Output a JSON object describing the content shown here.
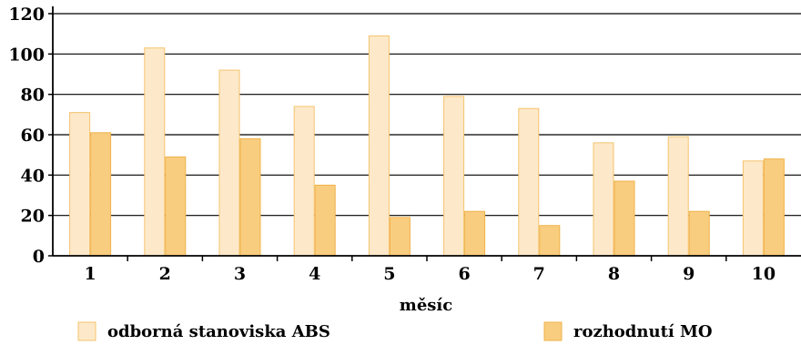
{
  "chart_data": {
    "type": "bar",
    "categories": [
      "1",
      "2",
      "3",
      "4",
      "5",
      "6",
      "7",
      "8",
      "9",
      "10"
    ],
    "series": [
      {
        "name": "odborná stanoviska ABS",
        "values": [
          71,
          103,
          92,
          74,
          109,
          79,
          73,
          56,
          59,
          47
        ],
        "color": "#fde9c9",
        "stroke": "#f5c36e"
      },
      {
        "name": "rozhodnutí MO",
        "values": [
          61,
          49,
          58,
          35,
          19,
          22,
          15,
          37,
          22,
          48
        ],
        "color": "#f9cd7f",
        "stroke": "#f0b24a"
      }
    ],
    "xlabel": "měsíc",
    "ylabel": "",
    "ylim": [
      0,
      120
    ],
    "yticks": [
      0,
      20,
      40,
      60,
      80,
      100,
      120
    ],
    "grid": true,
    "legend_position": "bottom"
  }
}
